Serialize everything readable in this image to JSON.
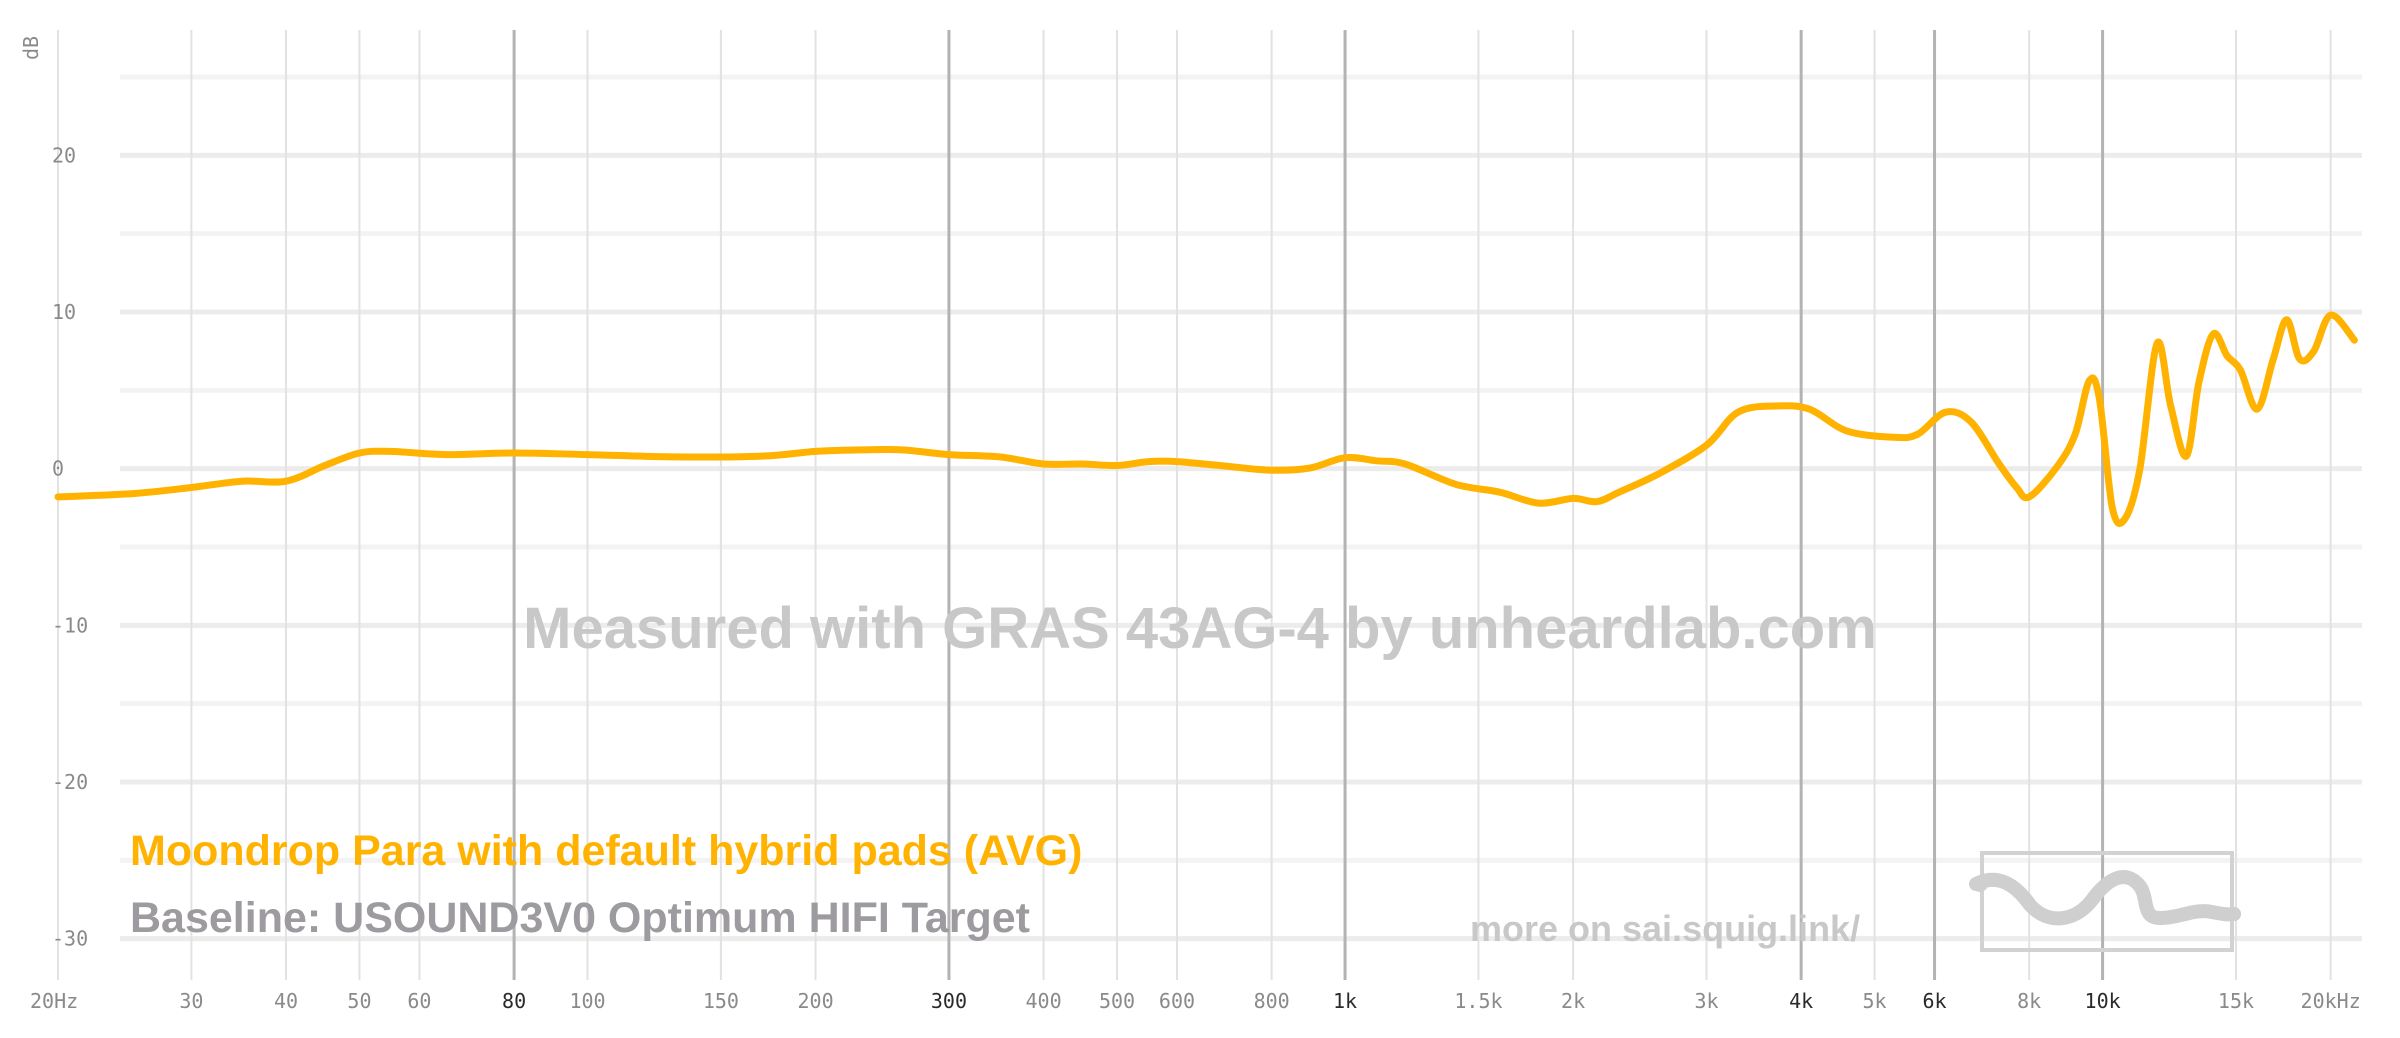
{
  "chart_data": {
    "type": "line",
    "xlabel": "",
    "ylabel": "dB",
    "xscale": "log",
    "xlim": [
      20,
      22000
    ],
    "ylim": [
      -32,
      28
    ],
    "grid": true,
    "x_ticks": [
      {
        "value": 20,
        "label": "20Hz",
        "major": false
      },
      {
        "value": 30,
        "label": "30",
        "major": false
      },
      {
        "value": 40,
        "label": "40",
        "major": false
      },
      {
        "value": 50,
        "label": "50",
        "major": false
      },
      {
        "value": 60,
        "label": "60",
        "major": false
      },
      {
        "value": 80,
        "label": "80",
        "major": true
      },
      {
        "value": 100,
        "label": "100",
        "major": false
      },
      {
        "value": 150,
        "label": "150",
        "major": false
      },
      {
        "value": 200,
        "label": "200",
        "major": false
      },
      {
        "value": 300,
        "label": "300",
        "major": true
      },
      {
        "value": 400,
        "label": "400",
        "major": false
      },
      {
        "value": 500,
        "label": "500",
        "major": false
      },
      {
        "value": 600,
        "label": "600",
        "major": false
      },
      {
        "value": 800,
        "label": "800",
        "major": false
      },
      {
        "value": 1000,
        "label": "1k",
        "major": true
      },
      {
        "value": 1500,
        "label": "1.5k",
        "major": false
      },
      {
        "value": 2000,
        "label": "2k",
        "major": false
      },
      {
        "value": 3000,
        "label": "3k",
        "major": false
      },
      {
        "value": 4000,
        "label": "4k",
        "major": true
      },
      {
        "value": 5000,
        "label": "5k",
        "major": false
      },
      {
        "value": 6000,
        "label": "6k",
        "major": true
      },
      {
        "value": 8000,
        "label": "8k",
        "major": false
      },
      {
        "value": 10000,
        "label": "10k",
        "major": true
      },
      {
        "value": 15000,
        "label": "15k",
        "major": false
      },
      {
        "value": 20000,
        "label": "20kHz",
        "major": false
      }
    ],
    "y_ticks": [
      {
        "value": 20,
        "label": "20"
      },
      {
        "value": 10,
        "label": "10"
      },
      {
        "value": 0,
        "label": "0"
      },
      {
        "value": -10,
        "label": "-10"
      },
      {
        "value": -20,
        "label": "-20"
      },
      {
        "value": -30,
        "label": "-30"
      }
    ],
    "y_minor_ticks": [
      25,
      15,
      5,
      -5,
      -15,
      -25
    ],
    "legend": {
      "placement": "bottom-left",
      "entries": [
        {
          "text": "Moondrop Para with default hybrid pads (AVG)",
          "color": "#ffb300"
        },
        {
          "text": "Baseline: USOUND3V0 Optimum HIFI Target",
          "color": "#9d9aa0"
        }
      ]
    },
    "series": [
      {
        "name": "Moondrop Para with default hybrid pads (AVG)",
        "color": "#ffb300",
        "points": [
          [
            20,
            -1.8
          ],
          [
            25,
            -1.6
          ],
          [
            30,
            -1.2
          ],
          [
            35,
            -0.8
          ],
          [
            40,
            -0.8
          ],
          [
            45,
            0.2
          ],
          [
            50,
            1.0
          ],
          [
            55,
            1.1
          ],
          [
            65,
            0.9
          ],
          [
            80,
            1.0
          ],
          [
            100,
            0.9
          ],
          [
            130,
            0.75
          ],
          [
            170,
            0.8
          ],
          [
            200,
            1.1
          ],
          [
            230,
            1.2
          ],
          [
            260,
            1.2
          ],
          [
            300,
            0.9
          ],
          [
            350,
            0.75
          ],
          [
            400,
            0.3
          ],
          [
            450,
            0.3
          ],
          [
            500,
            0.2
          ],
          [
            550,
            0.45
          ],
          [
            600,
            0.45
          ],
          [
            700,
            0.15
          ],
          [
            800,
            -0.1
          ],
          [
            900,
            0.05
          ],
          [
            1000,
            0.7
          ],
          [
            1100,
            0.5
          ],
          [
            1200,
            0.3
          ],
          [
            1400,
            -1.0
          ],
          [
            1600,
            -1.5
          ],
          [
            1800,
            -2.2
          ],
          [
            2000,
            -1.9
          ],
          [
            2150,
            -2.1
          ],
          [
            2300,
            -1.5
          ],
          [
            2600,
            -0.3
          ],
          [
            3000,
            1.5
          ],
          [
            3300,
            3.6
          ],
          [
            3700,
            4.0
          ],
          [
            4100,
            3.8
          ],
          [
            4600,
            2.4
          ],
          [
            5300,
            2.0
          ],
          [
            5700,
            2.2
          ],
          [
            6200,
            3.6
          ],
          [
            6700,
            3.0
          ],
          [
            7300,
            0.3
          ],
          [
            7700,
            -1.2
          ],
          [
            8000,
            -1.8
          ],
          [
            8700,
            0.1
          ],
          [
            9200,
            2.2
          ],
          [
            9600,
            5.6
          ],
          [
            9900,
            4.5
          ],
          [
            10300,
            -2.5
          ],
          [
            10700,
            -3.2
          ],
          [
            11200,
            0.0
          ],
          [
            11800,
            8.0
          ],
          [
            12300,
            4.0
          ],
          [
            12900,
            0.8
          ],
          [
            13400,
            5.5
          ],
          [
            14000,
            8.6
          ],
          [
            14600,
            7.2
          ],
          [
            15200,
            6.3
          ],
          [
            16000,
            3.8
          ],
          [
            16800,
            7.0
          ],
          [
            17500,
            9.5
          ],
          [
            18200,
            7.0
          ],
          [
            19000,
            7.5
          ],
          [
            20000,
            9.8
          ],
          [
            21500,
            8.2
          ]
        ]
      }
    ]
  },
  "watermark": {
    "measured_text": "Measured with GRAS 43AG-4 by unheardlab.com",
    "more_text": "more on sai.squig.link/"
  }
}
